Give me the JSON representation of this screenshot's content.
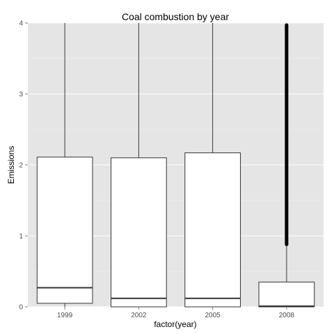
{
  "chart_data": {
    "type": "boxplot",
    "title": "Coal combustion by year",
    "xlabel": "factor(year)",
    "ylabel": "Emissions",
    "categories": [
      "1999",
      "2002",
      "2005",
      "2008"
    ],
    "ylim": [
      0,
      4
    ],
    "yticks": [
      0,
      1,
      2,
      3,
      4
    ],
    "grid": true,
    "boxes": [
      {
        "category": "1999",
        "q1": 0.05,
        "median": 0.27,
        "q3": 2.11,
        "whisker_low": 0,
        "whisker_high": 4
      },
      {
        "category": "2002",
        "q1": 0.0,
        "median": 0.12,
        "q3": 2.1,
        "whisker_low": 0,
        "whisker_high": 4
      },
      {
        "category": "2005",
        "q1": 0.0,
        "median": 0.12,
        "q3": 2.17,
        "whisker_low": 0,
        "whisker_high": 4
      },
      {
        "category": "2008",
        "q1": 0.0,
        "median": 0.01,
        "q3": 0.35,
        "whisker_low": 0,
        "whisker_high": 0.88,
        "outliers_from": 0.88,
        "outliers_to": 3.97
      }
    ],
    "colors": {
      "panel": "#e5e5e5",
      "grid": "#ffffff",
      "box_fill": "#ffffff",
      "box_stroke": "#333333"
    }
  }
}
